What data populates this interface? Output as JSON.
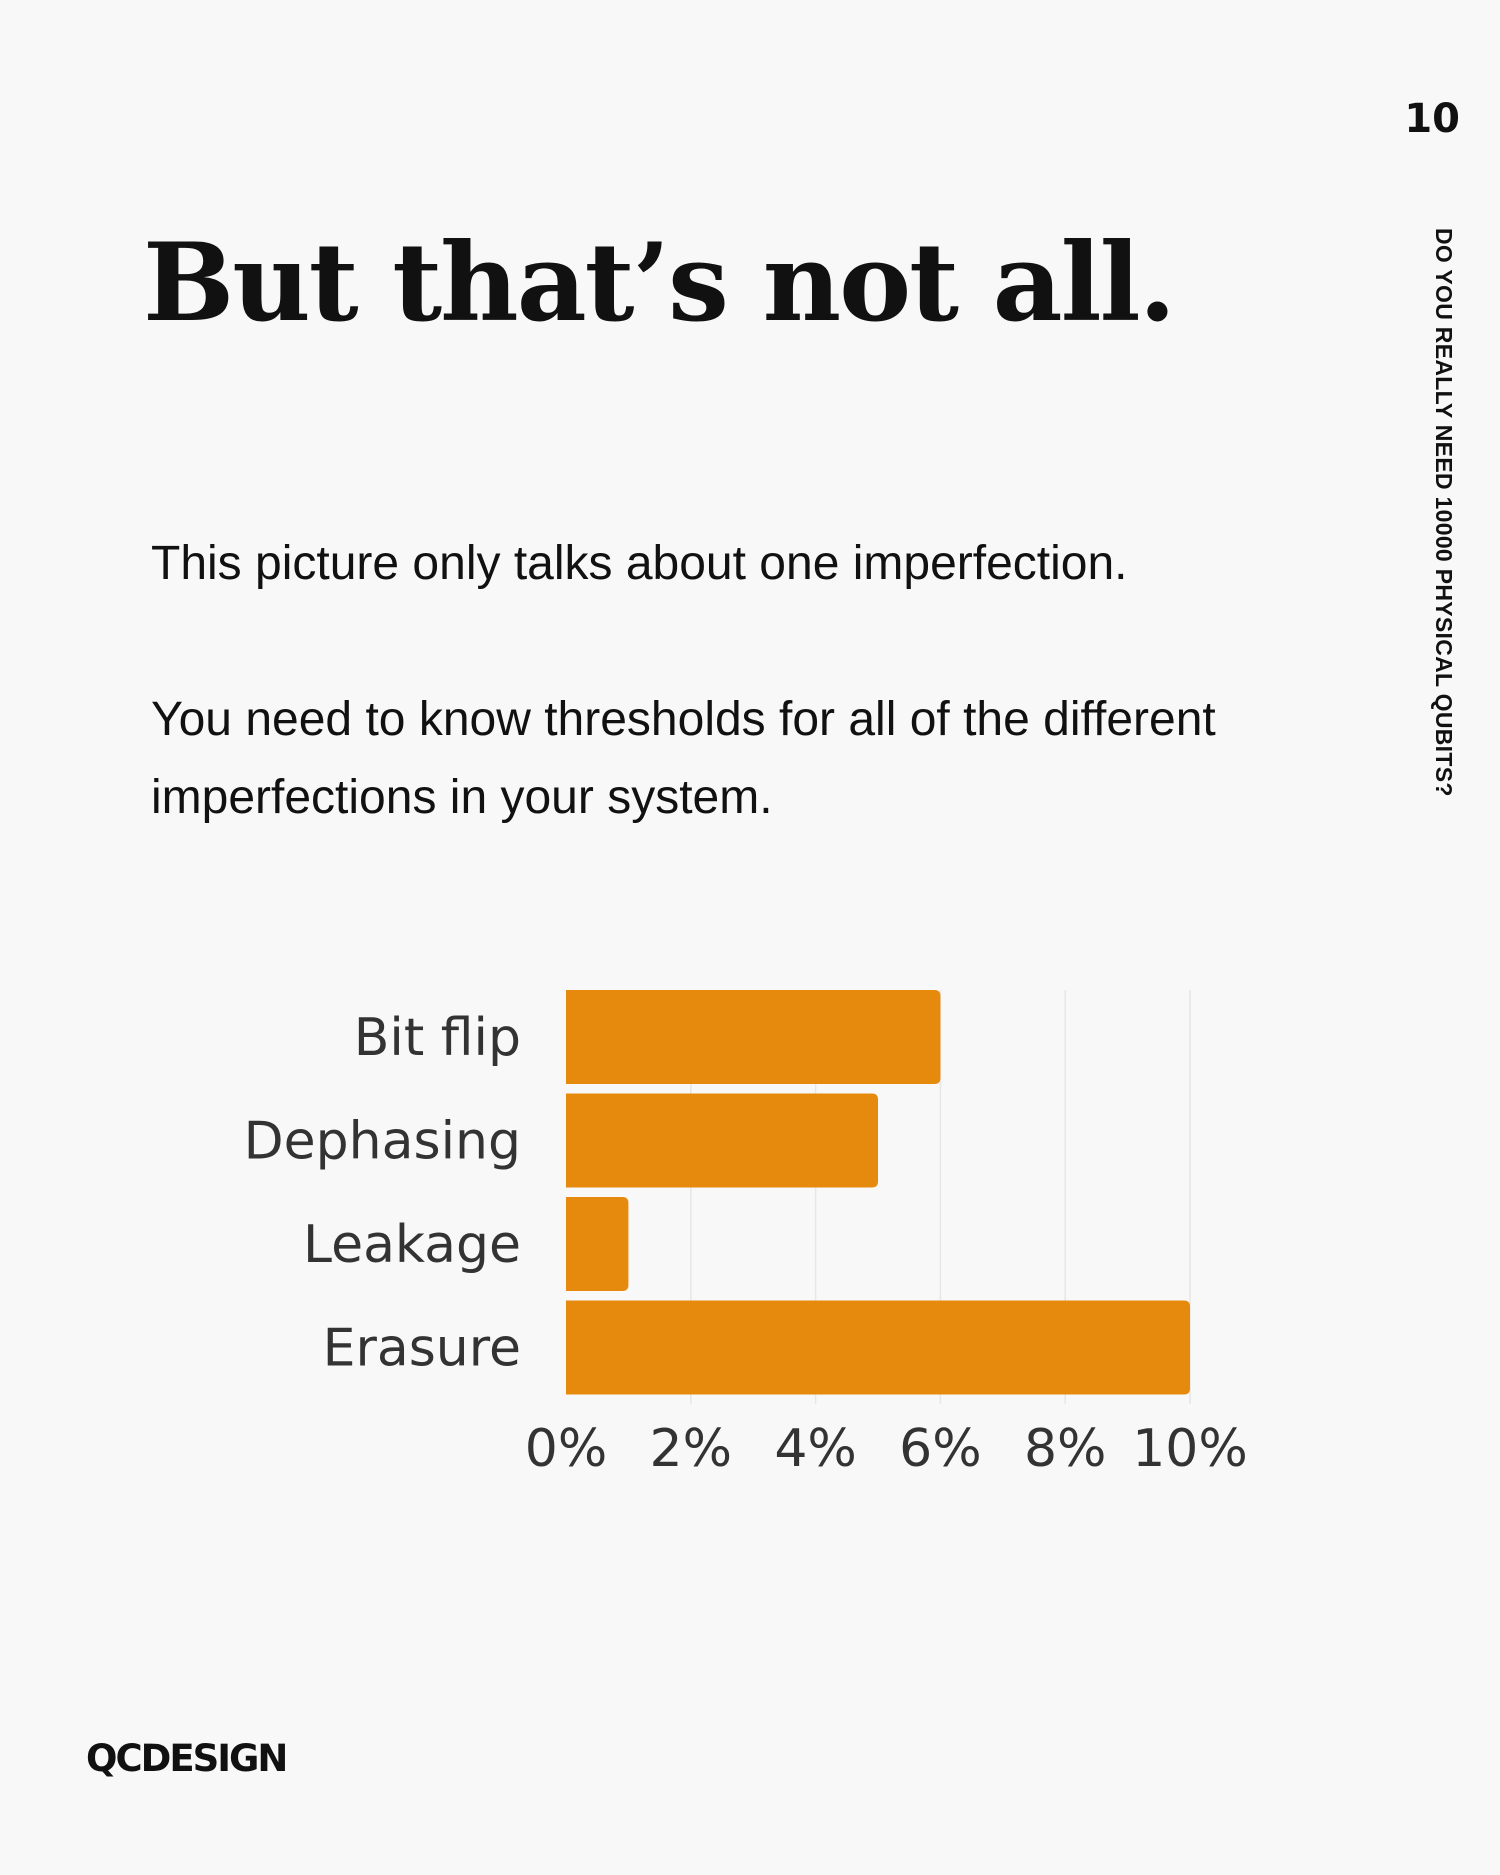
{
  "page_number": "10",
  "side_title": "DO YOU REALLY NEED 10000 PHYSICAL QUBITS?",
  "title": "But that’s not all.",
  "paragraphs": [
    "This picture only talks about one imperfection.",
    "You need to know thresholds for all of the different imperfections in your system."
  ],
  "logo": "QCDESIGN",
  "colors": {
    "bar": "#e68a0e",
    "grid": "#e6e6e6",
    "background": "#f8f8f8"
  },
  "chart_data": {
    "type": "bar",
    "orientation": "horizontal",
    "categories": [
      "Bit flip",
      "Dephasing",
      "Leakage",
      "Erasure"
    ],
    "values": [
      6,
      5,
      1,
      10
    ],
    "unit": "%",
    "xlim": [
      0,
      10
    ],
    "xticks": [
      "0%",
      "2%",
      "4%",
      "6%",
      "8%",
      "10%"
    ],
    "grid": true,
    "legend": "none"
  }
}
